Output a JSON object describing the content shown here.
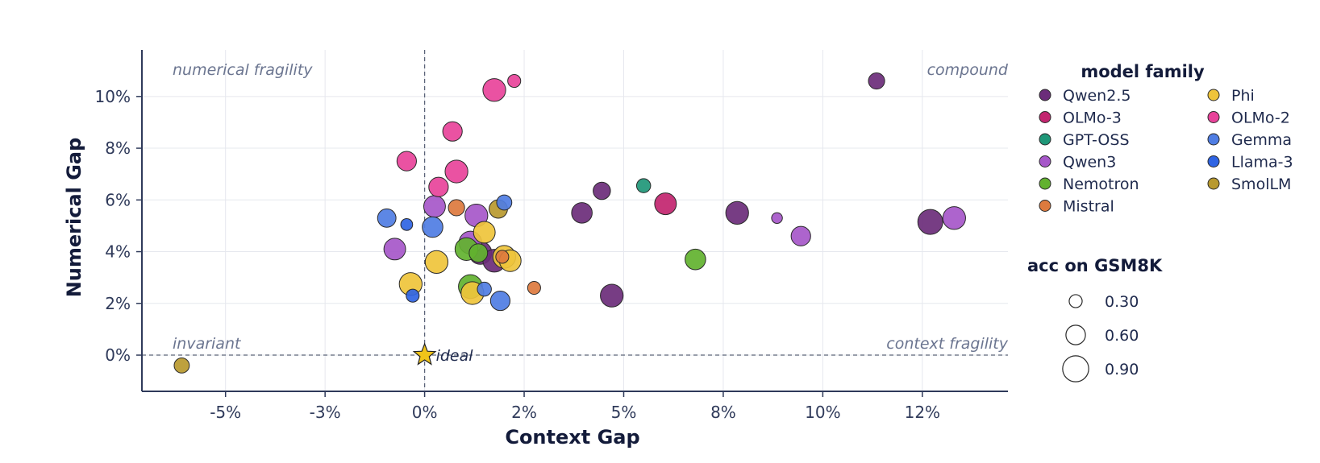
{
  "chart_data": {
    "type": "scatter",
    "xlabel": "Context Gap",
    "ylabel": "Numerical Gap",
    "xlim": [
      -0.071,
      0.1465
    ],
    "ylim": [
      -0.014,
      0.118
    ],
    "x_ticks": [
      -0.05,
      -0.025,
      0,
      0.025,
      0.05,
      0.075,
      0.1,
      0.125
    ],
    "x_tick_labels": [
      "-5%",
      "-3%",
      "0%",
      "2%",
      "5%",
      "8%",
      "10%",
      "12%"
    ],
    "y_ticks": [
      0,
      0.02,
      0.04,
      0.06,
      0.08,
      0.1
    ],
    "y_tick_labels": [
      "0%",
      "2%",
      "4%",
      "6%",
      "8%",
      "10%"
    ],
    "grid": true,
    "quadrant_labels": {
      "top_left": "numerical fragility",
      "top_right": "compound",
      "bottom_left": "invariant",
      "bottom_right": "context fragility"
    },
    "ideal": {
      "label": "ideal",
      "x": 0,
      "y": 0,
      "color": "#f0c419"
    },
    "legend_family_title": "model family",
    "legend_size_title": "acc on GSM8K",
    "size_legend": [
      0.3,
      0.6,
      0.9
    ],
    "families": [
      {
        "name": "Qwen2.5",
        "color": "#6b2c7a"
      },
      {
        "name": "OLMo-3",
        "color": "#c2256f"
      },
      {
        "name": "GPT-OSS",
        "color": "#1f9778"
      },
      {
        "name": "Qwen3",
        "color": "#a657c9"
      },
      {
        "name": "Nemotron",
        "color": "#62b22f"
      },
      {
        "name": "Mistral",
        "color": "#dd7a3e"
      },
      {
        "name": "Phi",
        "color": "#efc43b"
      },
      {
        "name": "OLMo-2",
        "color": "#e8439a"
      },
      {
        "name": "Gemma",
        "color": "#4f7de3"
      },
      {
        "name": "Llama-3",
        "color": "#2f64e3"
      },
      {
        "name": "SmolLM",
        "color": "#b8992e"
      }
    ],
    "points": [
      {
        "family": "Qwen2.5",
        "x": 0.1135,
        "y": 0.106,
        "acc": 0.45
      },
      {
        "family": "Qwen2.5",
        "x": 0.127,
        "y": 0.0515,
        "acc": 0.85
      },
      {
        "family": "Qwen2.5",
        "x": 0.0785,
        "y": 0.055,
        "acc": 0.75
      },
      {
        "family": "Qwen2.5",
        "x": 0.047,
        "y": 0.023,
        "acc": 0.75
      },
      {
        "family": "Qwen2.5",
        "x": 0.0445,
        "y": 0.0635,
        "acc": 0.5
      },
      {
        "family": "Qwen2.5",
        "x": 0.0445,
        "y": 0.0635,
        "acc": 0.5
      },
      {
        "family": "Qwen2.5",
        "x": 0.0445,
        "y": 0.0635,
        "acc": 0.5
      },
      {
        "family": "Qwen2.5",
        "x": 0.0445,
        "y": 0.0635,
        "acc": 0.5
      },
      {
        "family": "Qwen2.5",
        "x": 0.0445,
        "y": 0.0635,
        "acc": 0.5
      },
      {
        "family": "Qwen2.5",
        "x": 0.0445,
        "y": 0.0635,
        "acc": 0.5
      },
      {
        "family": "Qwen2.5",
        "x": 0.0445,
        "y": 0.0635,
        "acc": 0.5
      },
      {
        "family": "Qwen2.5",
        "x": 0.0445,
        "y": 0.0635,
        "acc": 0.5
      },
      {
        "family": "Qwen2.5",
        "x": 0.0445,
        "y": 0.0635,
        "acc": 0.5
      },
      {
        "family": "Qwen2.5",
        "x": 0.0395,
        "y": 0.055,
        "acc": 0.65
      },
      {
        "family": "Qwen2.5",
        "x": 0.014,
        "y": 0.0395,
        "acc": 0.75
      },
      {
        "family": "Qwen2.5",
        "x": 0.0175,
        "y": 0.0365,
        "acc": 0.75
      },
      {
        "family": "OLMo-3",
        "x": 0.0605,
        "y": 0.0585,
        "acc": 0.7
      },
      {
        "family": "GPT-OSS",
        "x": 0.055,
        "y": 0.0655,
        "acc": 0.35
      },
      {
        "family": "Qwen3",
        "x": 0.133,
        "y": 0.053,
        "acc": 0.75
      },
      {
        "family": "Qwen3",
        "x": 0.0945,
        "y": 0.046,
        "acc": 0.6
      },
      {
        "family": "Qwen3",
        "x": 0.0885,
        "y": 0.053,
        "acc": 0.2
      },
      {
        "family": "Qwen3",
        "x": 0.0025,
        "y": 0.0575,
        "acc": 0.7
      },
      {
        "family": "Qwen3",
        "x": 0.013,
        "y": 0.054,
        "acc": 0.75
      },
      {
        "family": "Qwen3",
        "x": 0.0115,
        "y": 0.0435,
        "acc": 0.75
      },
      {
        "family": "Qwen3",
        "x": -0.0075,
        "y": 0.041,
        "acc": 0.7
      },
      {
        "family": "Nemotron",
        "x": 0.068,
        "y": 0.037,
        "acc": 0.65
      },
      {
        "family": "Nemotron",
        "x": 0.0105,
        "y": 0.041,
        "acc": 0.75
      },
      {
        "family": "Nemotron",
        "x": 0.0135,
        "y": 0.0395,
        "acc": 0.55
      },
      {
        "family": "Nemotron",
        "x": 0.0115,
        "y": 0.0265,
        "acc": 0.8
      },
      {
        "family": "Mistral",
        "x": 0.008,
        "y": 0.057,
        "acc": 0.45
      },
      {
        "family": "Mistral",
        "x": 0.0275,
        "y": 0.026,
        "acc": 0.3
      },
      {
        "family": "Mistral",
        "x": 0.0195,
        "y": 0.038,
        "acc": 0.3
      },
      {
        "family": "Phi",
        "x": 0.015,
        "y": 0.0475,
        "acc": 0.7
      },
      {
        "family": "Phi",
        "x": 0.0215,
        "y": 0.0365,
        "acc": 0.7
      },
      {
        "family": "Phi",
        "x": 0.02,
        "y": 0.038,
        "acc": 0.75
      },
      {
        "family": "Phi",
        "x": 0.003,
        "y": 0.036,
        "acc": 0.75
      },
      {
        "family": "Phi",
        "x": -0.0035,
        "y": 0.0275,
        "acc": 0.75
      },
      {
        "family": "Phi",
        "x": 0.012,
        "y": 0.024,
        "acc": 0.75
      },
      {
        "family": "OLMo-2",
        "x": 0.0175,
        "y": 0.1025,
        "acc": 0.75
      },
      {
        "family": "OLMo-2",
        "x": 0.0225,
        "y": 0.106,
        "acc": 0.3
      },
      {
        "family": "OLMo-2",
        "x": 0.007,
        "y": 0.0865,
        "acc": 0.6
      },
      {
        "family": "OLMo-2",
        "x": 0.008,
        "y": 0.071,
        "acc": 0.75
      },
      {
        "family": "OLMo-2",
        "x": 0.0035,
        "y": 0.065,
        "acc": 0.6
      },
      {
        "family": "OLMo-2",
        "x": -0.0045,
        "y": 0.075,
        "acc": 0.6
      },
      {
        "family": "Gemma",
        "x": -0.0095,
        "y": 0.053,
        "acc": 0.55
      },
      {
        "family": "Gemma",
        "x": 0.002,
        "y": 0.0495,
        "acc": 0.65
      },
      {
        "family": "Gemma",
        "x": 0.019,
        "y": 0.021,
        "acc": 0.6
      },
      {
        "family": "Gemma",
        "x": 0.015,
        "y": 0.0255,
        "acc": 0.35
      },
      {
        "family": "Gemma",
        "x": 0.02,
        "y": 0.059,
        "acc": 0.4
      },
      {
        "family": "Llama-3",
        "x": -0.0045,
        "y": 0.0505,
        "acc": 0.25
      },
      {
        "family": "Llama-3",
        "x": -0.003,
        "y": 0.023,
        "acc": 0.3
      },
      {
        "family": "SmolLM",
        "x": 0.0185,
        "y": 0.0565,
        "acc": 0.55
      },
      {
        "family": "SmolLM",
        "x": -0.061,
        "y": -0.004,
        "acc": 0.4
      }
    ]
  }
}
